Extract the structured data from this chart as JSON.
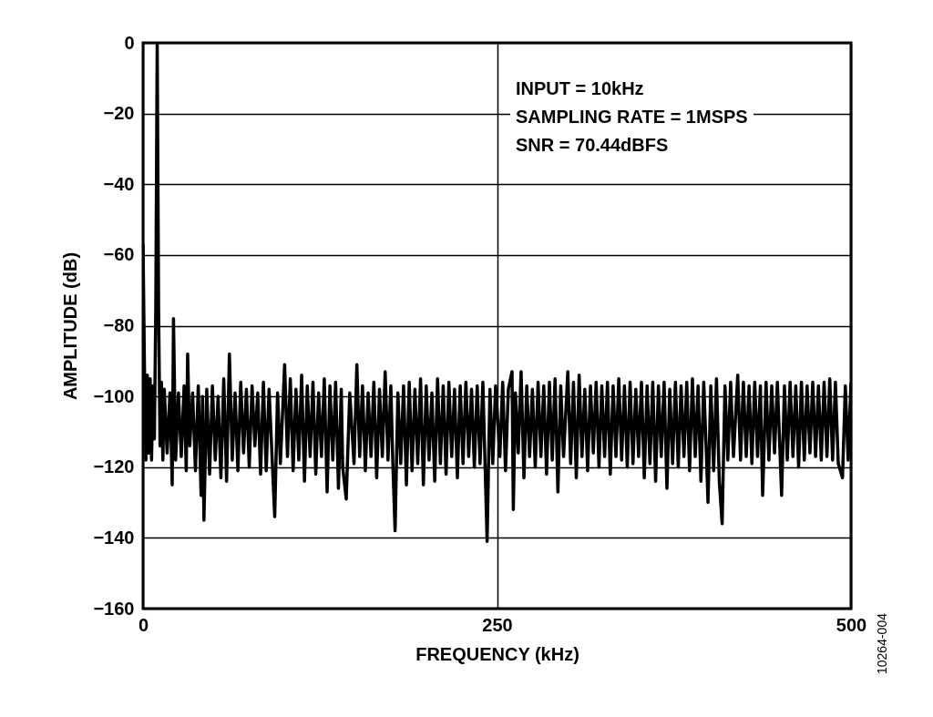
{
  "chart_data": {
    "type": "line",
    "xlabel": "FREQUENCY (kHz)",
    "ylabel": "AMPLITUDE (dB)",
    "xlim": [
      0,
      500
    ],
    "xticks": [
      0,
      250,
      500
    ],
    "ylim": [
      -160,
      0
    ],
    "yticks": [
      -160,
      -140,
      -120,
      -100,
      -80,
      -60,
      -40,
      -20,
      0
    ],
    "grid": true,
    "line_style": "solid",
    "annotations": [
      "INPUT = 10kHz",
      "SAMPLING RATE = 1MSPS",
      "SNR = 70.44dBFS",
      "10264-004"
    ],
    "series": [
      {
        "color": "#000000",
        "x": [
          0,
          1,
          2,
          3,
          4,
          5,
          6,
          7,
          8,
          9,
          10,
          11,
          12,
          13,
          14,
          15,
          17,
          19,
          20.6,
          21.5,
          23,
          25,
          27,
          29,
          30.5,
          31.5,
          33,
          35,
          37,
          39,
          41,
          42,
          43,
          45,
          47,
          49,
          51,
          53,
          55,
          57,
          59,
          61,
          63,
          65,
          67,
          69,
          71,
          73,
          75,
          77,
          79,
          81,
          83,
          85,
          87,
          89,
          91,
          93,
          95,
          97,
          100,
          102,
          104,
          106,
          108,
          110,
          112,
          114,
          116,
          118,
          120,
          122,
          124,
          126,
          128,
          130,
          132,
          134,
          136,
          138,
          140,
          141,
          143.5,
          146,
          149,
          151,
          153,
          155,
          157,
          159,
          161,
          163,
          165,
          167,
          169,
          171,
          173,
          175,
          176.5,
          178,
          180,
          182,
          184,
          186,
          188,
          190,
          192,
          194,
          196,
          198,
          200,
          202,
          204,
          206,
          208,
          210,
          212,
          214,
          216,
          218,
          220,
          222,
          224,
          226,
          228,
          230,
          232,
          234,
          236,
          238,
          240,
          243,
          245,
          247,
          249,
          252,
          254,
          256,
          258,
          260.6,
          261.5,
          263,
          265,
          267,
          269,
          271,
          273,
          275,
          277,
          279,
          281,
          283,
          285,
          287,
          289,
          291,
          293,
          295,
          297,
          300,
          302,
          304,
          306,
          308,
          310,
          312,
          314,
          316,
          318,
          320,
          322,
          324,
          326,
          328,
          330,
          332,
          334,
          336,
          338,
          340,
          342,
          344,
          346,
          348,
          350,
          352,
          354,
          356,
          358,
          360,
          362,
          364,
          366,
          368,
          370,
          372,
          374,
          376,
          378,
          380,
          382,
          384,
          386,
          388,
          390,
          392,
          394,
          396,
          398,
          399,
          401,
          403,
          405,
          407,
          409,
          411,
          413,
          415,
          417,
          420,
          422,
          424,
          426,
          428,
          430,
          432,
          434,
          436,
          437.6,
          440,
          442,
          444,
          446,
          448,
          451,
          453,
          455,
          457,
          459,
          461,
          463,
          465,
          467,
          469,
          471,
          473,
          475,
          477,
          479,
          481,
          483,
          485,
          487,
          489,
          491,
          494,
          496,
          498,
          500
        ],
        "values": [
          -57,
          -92,
          -118,
          -94,
          -116,
          -95,
          -118,
          -97,
          -112,
          -75,
          0,
          -76,
          -114,
          -96,
          -118,
          -98,
          -116,
          -99,
          -125,
          -78,
          -118,
          -99,
          -117,
          -97,
          -121,
          -88,
          -114,
          -99,
          -121,
          -97,
          -128,
          -100,
          -135,
          -98,
          -122,
          -97,
          -118,
          -100,
          -123,
          -95,
          -124,
          -88,
          -118,
          -99,
          -121,
          -96,
          -116,
          -98,
          -120,
          -97,
          -114,
          -99,
          -122,
          -96,
          -121,
          -98,
          -116,
          -134,
          -99,
          -119,
          -91,
          -117,
          -95,
          -121,
          -98,
          -118,
          -94,
          -124,
          -97,
          -117,
          -96,
          -122,
          -99,
          -117,
          -95,
          -127,
          -97,
          -118,
          -96,
          -126,
          -98,
          -120,
          -129,
          -99,
          -119,
          -91,
          -117,
          -97,
          -121,
          -99,
          -117,
          -96,
          -123,
          -98,
          -117,
          -93,
          -118,
          -97,
          -120,
          -138,
          -99,
          -119,
          -97,
          -125,
          -96,
          -121,
          -98,
          -119,
          -95,
          -125,
          -97,
          -118,
          -99,
          -124,
          -95,
          -119,
          -97,
          -122,
          -96,
          -117,
          -98,
          -123,
          -97,
          -119,
          -96,
          -117,
          -98,
          -120,
          -97,
          -119,
          -96,
          -141,
          -98,
          -119,
          -97,
          -117,
          -96,
          -121,
          -98,
          -93,
          -132,
          -99,
          -116,
          -93,
          -123,
          -97,
          -117,
          -98,
          -120,
          -96,
          -117,
          -97,
          -122,
          -96,
          -118,
          -95,
          -127,
          -97,
          -117,
          -93,
          -119,
          -96,
          -123,
          -94,
          -117,
          -98,
          -121,
          -97,
          -116,
          -96,
          -120,
          -97,
          -117,
          -96,
          -122,
          -97,
          -117,
          -95,
          -118,
          -97,
          -120,
          -96,
          -119,
          -98,
          -117,
          -96,
          -123,
          -97,
          -119,
          -96,
          -124,
          -97,
          -117,
          -96,
          -126,
          -98,
          -119,
          -96,
          -120,
          -97,
          -117,
          -96,
          -121,
          -95,
          -117,
          -97,
          -124,
          -96,
          -118,
          -130,
          -97,
          -121,
          -95,
          -124,
          -136,
          -97,
          -118,
          -96,
          -117,
          -94,
          -118,
          -96,
          -117,
          -97,
          -119,
          -96,
          -117,
          -97,
          -128,
          -96,
          -118,
          -97,
          -116,
          -96,
          -128,
          -97,
          -118,
          -96,
          -117,
          -97,
          -120,
          -96,
          -118,
          -97,
          -116,
          -96,
          -117,
          -97,
          -118,
          -96,
          -117,
          -95,
          -118,
          -96,
          -119,
          -123,
          -97,
          -118,
          -96
        ]
      }
    ]
  }
}
